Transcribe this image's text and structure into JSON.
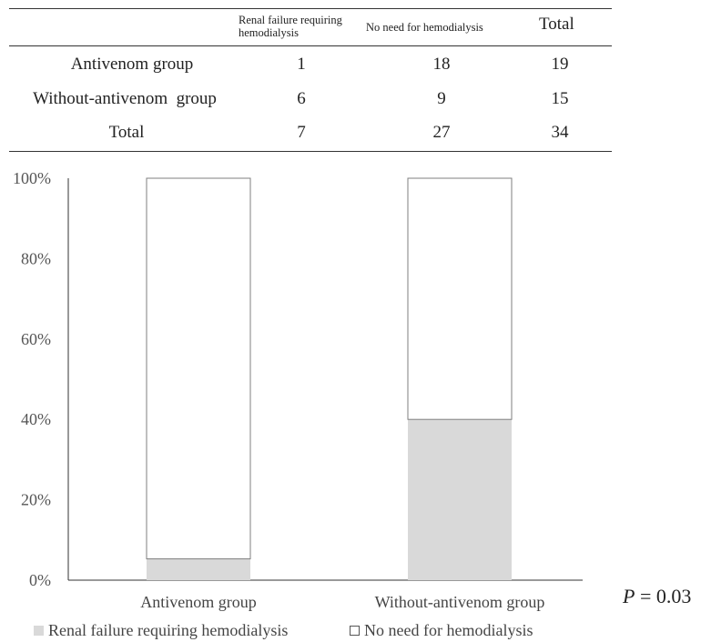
{
  "table": {
    "headers": {
      "col1_line1": "Renal failure requiring",
      "col1_line2": "hemodialysis",
      "col2": "No need for hemodialysis",
      "col3": "Total"
    },
    "rows": [
      {
        "label": "Antivenom group",
        "c1": "1",
        "c2": "18",
        "c3": "19"
      },
      {
        "label": "Without-antivenom  group",
        "c1": "6",
        "c2": "9",
        "c3": "15"
      },
      {
        "label": "Total",
        "c1": "7",
        "c2": "27",
        "c3": "34"
      }
    ]
  },
  "chart_data": {
    "type": "bar",
    "stacked": true,
    "normalized_percent": true,
    "categories": [
      "Antivenom group",
      "Without-antivenom group"
    ],
    "series": [
      {
        "name": "Renal failure requiring hemodialysis",
        "values": [
          5.3,
          40.0
        ],
        "color": "#d9d9d9"
      },
      {
        "name": "No need for hemodialysis",
        "values": [
          94.7,
          60.0
        ],
        "color": "#ffffff"
      }
    ],
    "yticks": [
      "0%",
      "20%",
      "40%",
      "60%",
      "80%",
      "100%"
    ],
    "ylim": [
      0,
      100
    ],
    "grid": false,
    "legend_position": "bottom"
  },
  "annotation": {
    "p_label": "P",
    "p_value": " = 0.03"
  },
  "colors": {
    "renal_fill": "#d9d9d9",
    "none_fill": "#ffffff",
    "bar_border": "#7f7f7f",
    "axis": "#333333",
    "text": "#222222"
  }
}
